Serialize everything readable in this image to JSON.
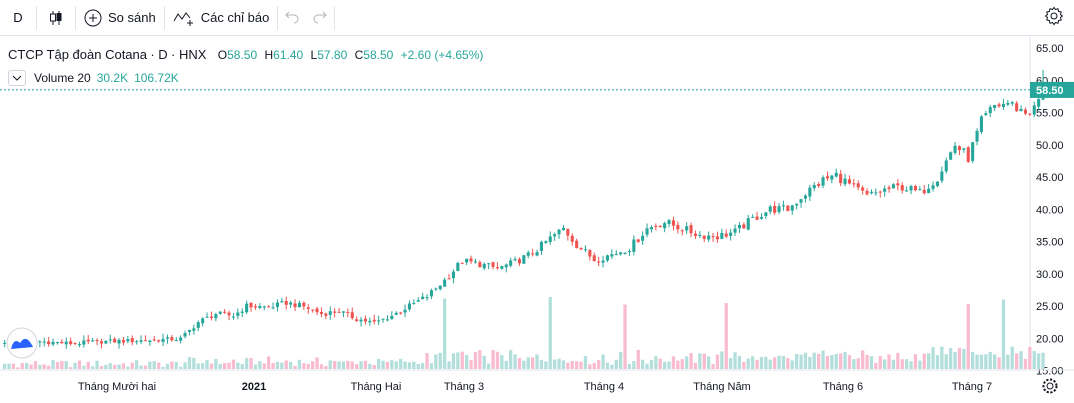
{
  "toolbar": {
    "interval": "D",
    "compare_label": "So sánh",
    "indicators_label": "Các chỉ báo"
  },
  "legend": {
    "symbol_name": "CTCP Tập đoàn Cotana",
    "interval": "D",
    "exchange": "HNX",
    "open_key": "O",
    "open_value": "58.50",
    "high_key": "H",
    "high_value": "61.40",
    "low_key": "L",
    "low_value": "57.80",
    "close_key": "C",
    "close_value": "58.50",
    "change": "+2.60 (+4.65%)"
  },
  "volume_legend": {
    "title": "Volume 20",
    "value": "30.2K",
    "ma_value": "106.72K"
  },
  "colors": {
    "up": "#26a69a",
    "down": "#ef5350",
    "up_volume": "#b2dfdb",
    "down_volume": "#f8bbd0",
    "last_price_line": "#26a69a"
  },
  "icons": [
    "candles-icon",
    "add-compare-icon",
    "indicators-icon",
    "undo-icon",
    "redo-icon",
    "settings-icon",
    "logo-icon",
    "axis-settings-icon"
  ],
  "chart_data": {
    "type": "candlestick",
    "title": "CTCP Tập đoàn Cotana",
    "ylim": [
      14.5,
      66.5
    ],
    "y_ticks": [
      "65.00",
      "60.00",
      "55.00",
      "50.00",
      "45.00",
      "40.00",
      "35.00",
      "30.00",
      "25.00",
      "20.00",
      "15.00"
    ],
    "x_ticks": [
      "Tháng Mười hai",
      "2021",
      "Tháng Hai",
      "Tháng 3",
      "Tháng 4",
      "Tháng Năm",
      "Tháng 6",
      "Tháng 7"
    ],
    "last_price": "58.50",
    "anchors": [
      [
        0,
        19.5
      ],
      [
        8,
        19.5
      ],
      [
        15,
        19.2
      ],
      [
        22,
        19.5
      ],
      [
        29,
        19.6
      ],
      [
        36,
        19.8
      ],
      [
        40,
        19.9
      ],
      [
        44,
        22.5
      ],
      [
        48,
        23.8
      ],
      [
        52,
        23.5
      ],
      [
        55,
        25.0
      ],
      [
        60,
        24.8
      ],
      [
        64,
        25.5
      ],
      [
        68,
        24.9
      ],
      [
        72,
        23.8
      ],
      [
        76,
        24.2
      ],
      [
        80,
        23.0
      ],
      [
        84,
        22.4
      ],
      [
        88,
        23.5
      ],
      [
        92,
        25.0
      ],
      [
        96,
        26.5
      ],
      [
        100,
        29.0
      ],
      [
        104,
        32.0
      ],
      [
        108,
        31.5
      ],
      [
        112,
        30.8
      ],
      [
        116,
        31.8
      ],
      [
        120,
        33.2
      ],
      [
        124,
        35.5
      ],
      [
        127,
        37.0
      ],
      [
        130,
        34.5
      ],
      [
        134,
        32.2
      ],
      [
        138,
        33.0
      ],
      [
        142,
        34.0
      ],
      [
        146,
        37.0
      ],
      [
        150,
        38.0
      ],
      [
        154,
        37.0
      ],
      [
        158,
        36.0
      ],
      [
        162,
        35.8
      ],
      [
        166,
        36.5
      ],
      [
        170,
        38.5
      ],
      [
        174,
        40.0
      ],
      [
        178,
        40.0
      ],
      [
        182,
        42.5
      ],
      [
        186,
        44.5
      ],
      [
        189,
        45.3
      ],
      [
        192,
        43.8
      ],
      [
        196,
        42.0
      ],
      [
        200,
        43.0
      ],
      [
        204,
        43.5
      ],
      [
        208,
        42.5
      ],
      [
        212,
        45.0
      ],
      [
        216,
        50.0
      ],
      [
        219,
        48.0
      ],
      [
        222,
        53.5
      ],
      [
        225,
        56.0
      ],
      [
        228,
        56.5
      ],
      [
        232,
        55.0
      ],
      [
        234,
        55.5
      ],
      [
        236,
        58.5
      ]
    ],
    "volume_unit": "relative (0-1, max ≈ 0.30M)"
  }
}
